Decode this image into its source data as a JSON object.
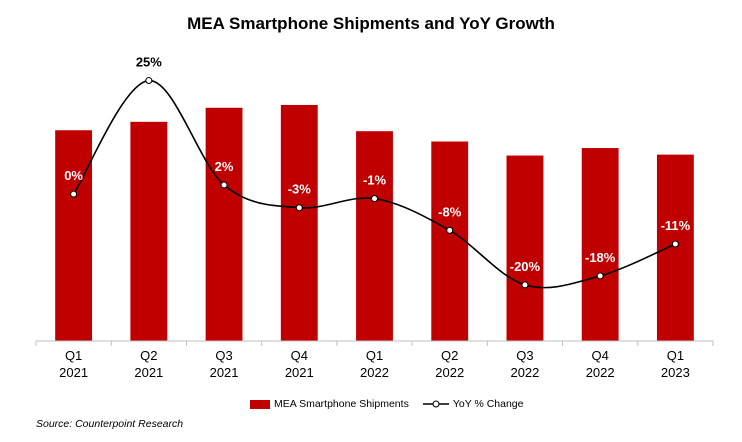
{
  "chart_data": {
    "type": "bar",
    "title": "MEA Smartphone Shipments and YoY Growth",
    "categories": [
      [
        "Q1",
        "2021"
      ],
      [
        "Q2",
        "2021"
      ],
      [
        "Q3",
        "2021"
      ],
      [
        "Q4",
        "2021"
      ],
      [
        "Q1",
        "2022"
      ],
      [
        "Q2",
        "2022"
      ],
      [
        "Q3",
        "2022"
      ],
      [
        "Q4",
        "2022"
      ],
      [
        "Q1",
        "2023"
      ]
    ],
    "series": [
      {
        "name": "MEA Smartphone Shipments",
        "kind": "bar",
        "color": "#c00000",
        "values": [
          22.5,
          23.4,
          24.9,
          25.2,
          22.4,
          21.3,
          19.8,
          20.6,
          19.9
        ]
      },
      {
        "name": "YoY % Change",
        "kind": "line",
        "color": "#000000",
        "values": [
          0,
          25,
          2,
          -3,
          -1,
          -8,
          -20,
          -18,
          -11
        ],
        "labels": [
          "0%",
          "25%",
          "2%",
          "-3%",
          "-1%",
          "-8%",
          "-20%",
          "-18%",
          "-11%"
        ]
      }
    ],
    "ylim_bars": [
      0,
      30
    ],
    "ylim_line": [
      -22,
      26
    ],
    "legend_position": "bottom",
    "source": "Source: Counterpoint Research"
  }
}
